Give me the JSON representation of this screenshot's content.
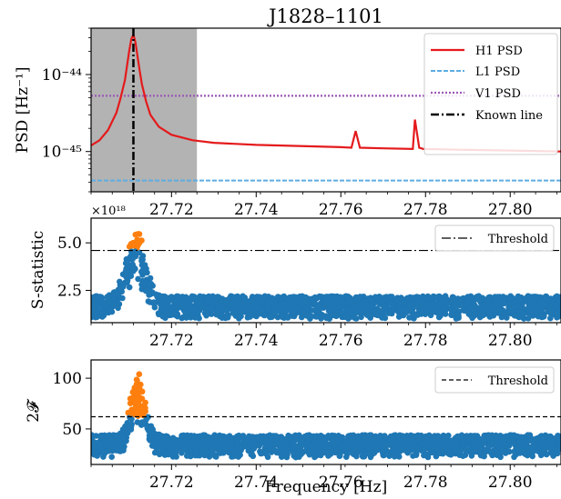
{
  "chart_data": [
    {
      "type": "line",
      "title": "J1828–1101",
      "ylabel": "PSD [Hz⁻¹]",
      "xlim": [
        27.701,
        27.812
      ],
      "ylim": [
        3e-46,
        4e-44
      ],
      "yscale": "log",
      "xticks": [
        "27.72",
        "27.74",
        "27.76",
        "27.78",
        "27.80"
      ],
      "yticks": [
        "10⁻⁴⁴",
        "10⁻⁴⁵"
      ],
      "shaded_region": [
        27.701,
        27.726
      ],
      "known_line": 27.711,
      "legend": [
        "H1 PSD",
        "L1 PSD",
        "V1 PSD",
        "Known line"
      ],
      "legend_position": "top-right",
      "series": [
        {
          "name": "H1 PSD",
          "color": "#e41a1c",
          "x": [
            27.701,
            27.703,
            27.705,
            27.707,
            27.708,
            27.709,
            27.7095,
            27.71,
            27.7105,
            27.711,
            27.7115,
            27.712,
            27.7125,
            27.713,
            27.714,
            27.715,
            27.717,
            27.72,
            27.725,
            27.73,
            27.74,
            27.75,
            27.76,
            27.7625,
            27.7635,
            27.7645,
            27.77,
            27.777,
            27.7775,
            27.7785,
            27.7795,
            27.79,
            27.8,
            27.812
          ],
          "y": [
            1.2e-45,
            1.4e-45,
            1.9e-45,
            3.2e-45,
            5e-45,
            8.5e-45,
            1.3e-44,
            2e-44,
            2.9e-44,
            3.3e-44,
            2.6e-44,
            1.7e-44,
            1.1e-44,
            7.5e-45,
            4.5e-45,
            3e-45,
            2.1e-45,
            1.65e-45,
            1.4e-45,
            1.3e-45,
            1.22e-45,
            1.18e-45,
            1.14e-45,
            1.12e-45,
            1.85e-45,
            1.12e-45,
            1.1e-45,
            1.08e-45,
            2.6e-45,
            1.12e-45,
            1.08e-45,
            1.05e-45,
            1.03e-45,
            1e-45
          ]
        },
        {
          "name": "L1 PSD",
          "color": "#5dade2",
          "x": [
            27.701,
            27.812
          ],
          "y": [
            4.2e-46,
            4.2e-46
          ]
        },
        {
          "name": "V1 PSD",
          "color": "#9b59b6",
          "x": [
            27.701,
            27.812
          ],
          "y": [
            5.3e-45,
            5.3e-45
          ]
        }
      ]
    },
    {
      "type": "scatter",
      "ylabel": "S-statistic",
      "scale_label": "×10¹⁸",
      "xlim": [
        27.701,
        27.812
      ],
      "ylim": [
        0.8,
        6.3
      ],
      "xticks": [
        "27.72",
        "27.74",
        "27.76",
        "27.78",
        "27.80"
      ],
      "yticks": [
        "5.0",
        "2.5"
      ],
      "threshold": 4.6,
      "legend": [
        "Threshold"
      ],
      "legend_position": "top-right",
      "colors": {
        "below": "#1f77b4",
        "above": "#ff7f0e"
      },
      "noise_band": [
        1.0,
        2.2
      ],
      "peak_center": 27.7115,
      "peak_max": 5.9
    },
    {
      "type": "scatter",
      "ylabel": "2𝓕",
      "xlabel": "Frequency [Hz]",
      "xlim": [
        27.701,
        27.812
      ],
      "ylim": [
        15,
        118
      ],
      "xticks": [
        "27.72",
        "27.74",
        "27.76",
        "27.78",
        "27.80"
      ],
      "yticks": [
        "100",
        "50"
      ],
      "threshold": 62,
      "legend": [
        "Threshold"
      ],
      "legend_position": "top-right",
      "colors": {
        "below": "#1f77b4",
        "above": "#ff7f0e"
      },
      "noise_band": [
        22,
        44
      ],
      "peak_center": 27.712,
      "peak_max": 110
    }
  ]
}
